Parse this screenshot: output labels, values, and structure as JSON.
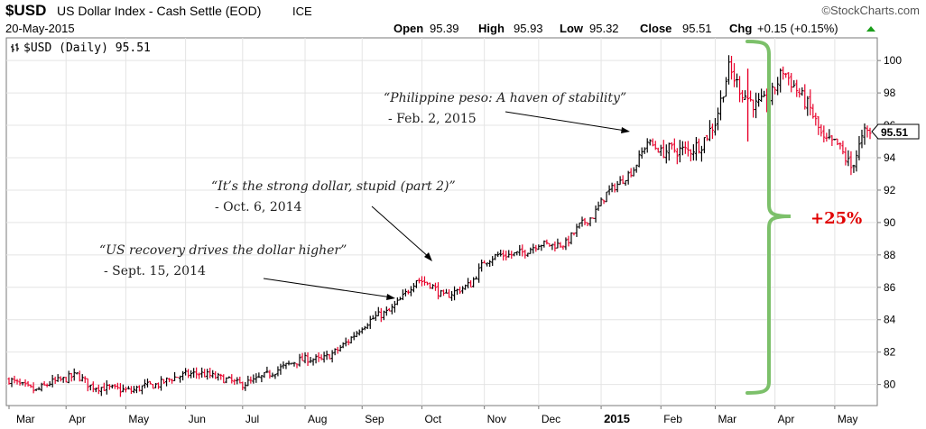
{
  "header": {
    "symbol": "$USD",
    "name": "US Dollar Index - Cash Settle (EOD)",
    "exchange": "ICE",
    "brand": "©StockCharts.com",
    "date": "20-May-2015",
    "ohlc": {
      "open_label": "Open",
      "open": "95.39",
      "high_label": "High",
      "high": "95.93",
      "low_label": "Low",
      "low": "95.32",
      "close_label": "Close",
      "close": "95.51",
      "chg_label": "Chg",
      "chg": "+0.15 (+0.15%)"
    },
    "legend": "$USD (Daily) 95.51"
  },
  "chart_data": {
    "type": "ohlc",
    "title": "US Dollar Index - Cash Settle (EOD)",
    "ylim": [
      78.7,
      101.4
    ],
    "yticks": [
      80,
      82,
      84,
      86,
      88,
      90,
      92,
      94,
      96,
      98,
      100
    ],
    "xlabels": [
      "Mar",
      "Apr",
      "May",
      "Jun",
      "Jul",
      "Aug",
      "Sep",
      "Oct",
      "Nov",
      "Dec",
      "2015",
      "Feb",
      "Mar",
      "Apr",
      "May"
    ],
    "year_label": "2015",
    "last_value": "95.51",
    "up_color": "#000000",
    "down_color": "#e8002a",
    "approx_weekly_closes": [
      [
        "2014-03-03",
        80.3
      ],
      [
        "2014-03-10",
        79.9
      ],
      [
        "2014-03-17",
        79.6
      ],
      [
        "2014-03-24",
        80.1
      ],
      [
        "2014-03-31",
        80.3
      ],
      [
        "2014-04-07",
        80.6
      ],
      [
        "2014-04-14",
        79.9
      ],
      [
        "2014-04-21",
        79.8
      ],
      [
        "2014-04-28",
        79.7
      ],
      [
        "2014-05-05",
        79.6
      ],
      [
        "2014-05-12",
        79.9
      ],
      [
        "2014-05-19",
        80.0
      ],
      [
        "2014-05-26",
        80.4
      ],
      [
        "2014-06-02",
        80.6
      ],
      [
        "2014-06-09",
        80.7
      ],
      [
        "2014-06-16",
        80.5
      ],
      [
        "2014-06-23",
        80.3
      ],
      [
        "2014-06-30",
        80.0
      ],
      [
        "2014-07-07",
        80.2
      ],
      [
        "2014-07-14",
        80.6
      ],
      [
        "2014-07-21",
        81.0
      ],
      [
        "2014-07-28",
        81.4
      ],
      [
        "2014-08-04",
        81.6
      ],
      [
        "2014-08-11",
        81.5
      ],
      [
        "2014-08-18",
        82.0
      ],
      [
        "2014-08-25",
        82.7
      ],
      [
        "2014-09-01",
        83.6
      ],
      [
        "2014-09-08",
        84.2
      ],
      [
        "2014-09-15",
        84.5
      ],
      [
        "2014-09-22",
        85.4
      ],
      [
        "2014-09-29",
        86.5
      ],
      [
        "2014-10-06",
        86.2
      ],
      [
        "2014-10-13",
        85.4
      ],
      [
        "2014-10-20",
        85.8
      ],
      [
        "2014-10-27",
        86.2
      ],
      [
        "2014-11-03",
        87.6
      ],
      [
        "2014-11-10",
        88.0
      ],
      [
        "2014-11-17",
        88.0
      ],
      [
        "2014-11-24",
        88.2
      ],
      [
        "2014-12-01",
        88.7
      ],
      [
        "2014-12-08",
        88.6
      ],
      [
        "2014-12-15",
        88.7
      ],
      [
        "2014-12-22",
        89.8
      ],
      [
        "2014-12-29",
        90.4
      ],
      [
        "2015-01-05",
        91.8
      ],
      [
        "2015-01-12",
        92.5
      ],
      [
        "2015-01-19",
        93.3
      ],
      [
        "2015-01-26",
        95.0
      ],
      [
        "2015-02-02",
        94.4
      ],
      [
        "2015-02-09",
        94.5
      ],
      [
        "2015-02-16",
        94.4
      ],
      [
        "2015-02-23",
        94.9
      ],
      [
        "2015-03-02",
        96.2
      ],
      [
        "2015-03-09",
        99.5
      ],
      [
        "2015-03-16",
        98.0
      ],
      [
        "2015-03-23",
        97.2
      ],
      [
        "2015-03-30",
        97.6
      ],
      [
        "2015-04-06",
        99.4
      ],
      [
        "2015-04-13",
        98.2
      ],
      [
        "2015-04-20",
        97.0
      ],
      [
        "2015-04-27",
        95.0
      ],
      [
        "2015-05-04",
        94.8
      ],
      [
        "2015-05-11",
        93.4
      ],
      [
        "2015-05-18",
        95.51
      ]
    ]
  },
  "annotations": [
    {
      "quote": "“US recovery drives the dollar higher”",
      "date": "- Sept. 15, 2014"
    },
    {
      "quote": "“It’s the strong dollar, stupid (part 2)”",
      "date": "- Oct. 6, 2014"
    },
    {
      "quote": "“Philippine peso: A haven of stability”",
      "date": "- Feb. 2, 2015"
    }
  ],
  "gain_label": "+25%",
  "bracket_color": "#7cc06a"
}
